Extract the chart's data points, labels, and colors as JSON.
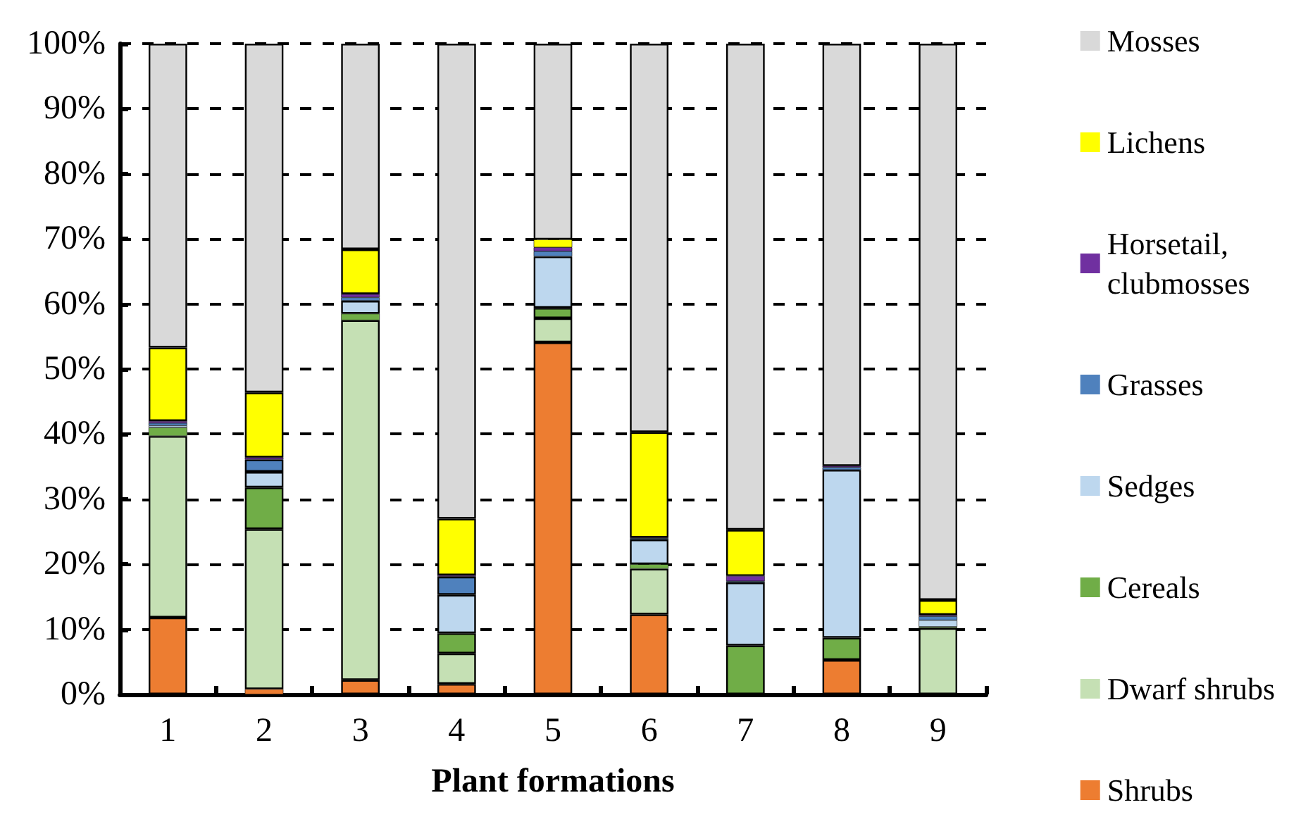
{
  "chart_data": {
    "type": "bar",
    "stacked": true,
    "xlabel": "Plant formations",
    "categories": [
      "1",
      "2",
      "3",
      "4",
      "5",
      "6",
      "7",
      "8",
      "9"
    ],
    "series": [
      {
        "name": "Shrubs",
        "color": "#ed7d31",
        "values": [
          11.8,
          0.8,
          2.2,
          1.6,
          54.1,
          12.3,
          0,
          5.3,
          0
        ]
      },
      {
        "name": "Dwarf shrubs",
        "color": "#c5e0b4",
        "values": [
          27.9,
          24.6,
          55.3,
          4.7,
          3.7,
          7.0,
          0,
          0,
          10.2
        ]
      },
      {
        "name": "Cereals",
        "color": "#70ad47",
        "values": [
          1.3,
          6.4,
          1.0,
          3.1,
          1.6,
          0.7,
          7.5,
          3.4,
          0.2
        ]
      },
      {
        "name": "Sedges",
        "color": "#bdd7ee",
        "values": [
          0.3,
          2.4,
          2.0,
          5.9,
          7.9,
          3.8,
          9.7,
          25.8,
          1.0
        ]
      },
      {
        "name": "Grasses",
        "color": "#4f81bd",
        "values": [
          0.4,
          1.9,
          0.5,
          2.8,
          0.8,
          0.2,
          0.2,
          0.4,
          0.6
        ]
      },
      {
        "name": "Horsetail, clubmosses",
        "color": "#7030a0",
        "values": [
          0.3,
          0.3,
          0.5,
          0.2,
          0.6,
          0.1,
          0.8,
          0.2,
          0.2
        ]
      },
      {
        "name": "Lichens",
        "color": "#ffff00",
        "values": [
          11.3,
          10.0,
          6.9,
          8.7,
          1.2,
          16.2,
          7.1,
          0,
          2.3
        ]
      },
      {
        "name": "Mosses",
        "color": "#d9d9d9",
        "values": [
          46.7,
          53.6,
          31.6,
          73.0,
          30.1,
          59.7,
          74.7,
          64.9,
          85.5
        ]
      }
    ],
    "ylim": [
      0,
      100
    ],
    "yticks": [
      {
        "value": 0,
        "label": "0%"
      },
      {
        "value": 10,
        "label": "10%"
      },
      {
        "value": 20,
        "label": "20%"
      },
      {
        "value": 30,
        "label": "30%"
      },
      {
        "value": 40,
        "label": "40%"
      },
      {
        "value": 50,
        "label": "50%"
      },
      {
        "value": 60,
        "label": "60%"
      },
      {
        "value": 70,
        "label": "70%"
      },
      {
        "value": 80,
        "label": "80%"
      },
      {
        "value": 90,
        "label": "90%"
      },
      {
        "value": 100,
        "label": "100%"
      }
    ],
    "grid": "y",
    "legend": "right"
  }
}
